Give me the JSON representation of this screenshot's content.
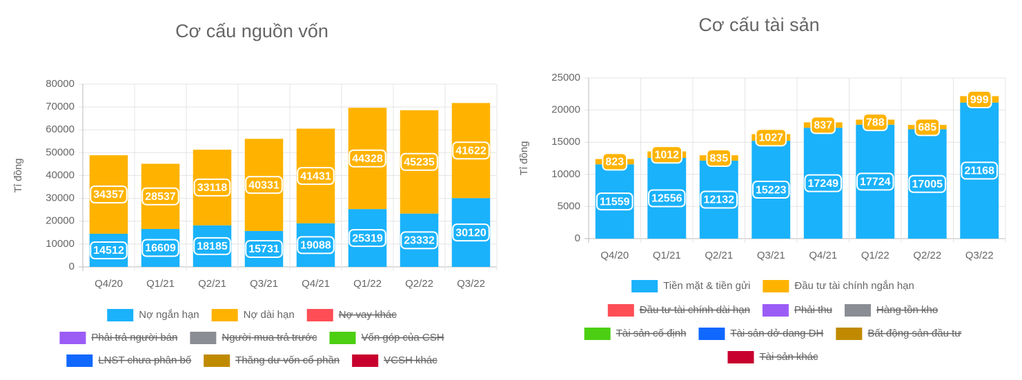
{
  "chart_data": [
    {
      "type": "bar",
      "stacked": true,
      "title": "Cơ cấu nguồn vốn",
      "y_label": "Tỉ đồng",
      "categories": [
        "Q4/20",
        "Q1/21",
        "Q2/21",
        "Q3/21",
        "Q4/21",
        "Q1/22",
        "Q2/22",
        "Q3/22"
      ],
      "series": [
        {
          "name": "Nợ ngắn hạn",
          "color": "#1ab2fb",
          "values": [
            14512,
            16609,
            18185,
            15731,
            19088,
            25319,
            23332,
            30120
          ]
        },
        {
          "name": "Nợ dài hạn",
          "color": "#ffb300",
          "values": [
            34357,
            28537,
            33118,
            40331,
            41431,
            44328,
            45235,
            41622
          ]
        }
      ],
      "legend_hidden": [
        {
          "name": "Nợ vay khác",
          "color": "#ff4d55"
        },
        {
          "name": "Phải trả người bán",
          "color": "#9b5cf6"
        },
        {
          "name": "Người mua trả trước",
          "color": "#8a8d93"
        },
        {
          "name": "Vốn góp của CSH",
          "color": "#4ccf12"
        },
        {
          "name": "LNST chưa phân bố",
          "color": "#1068ff"
        },
        {
          "name": "Thăng dư vốn cổ phần",
          "color": "#c08a00"
        },
        {
          "name": "VCSH khác",
          "color": "#c8002e"
        }
      ],
      "ylim": [
        0,
        80000
      ],
      "yticks": [
        0,
        10000,
        20000,
        30000,
        40000,
        50000,
        60000,
        70000,
        80000
      ],
      "grid": true
    },
    {
      "type": "bar",
      "stacked": true,
      "title": "Cơ cấu tài sản",
      "y_label": "Tỉ đồng",
      "categories": [
        "Q4/20",
        "Q1/21",
        "Q2/21",
        "Q3/21",
        "Q4/21",
        "Q1/22",
        "Q2/22",
        "Q3/22"
      ],
      "series": [
        {
          "name": "Tiền mặt & tiền gửi",
          "color": "#1ab2fb",
          "values": [
            11559,
            12556,
            12132,
            15223,
            17249,
            17724,
            17005,
            21168
          ]
        },
        {
          "name": "Đầu tư tài chính ngắn hạn",
          "color": "#ffb300",
          "values": [
            823,
            1012,
            835,
            1027,
            837,
            788,
            685,
            999
          ]
        }
      ],
      "legend_hidden": [
        {
          "name": "Đầu tư tài chính dài hạn",
          "color": "#ff4d55"
        },
        {
          "name": "Phải thu",
          "color": "#9b5cf6"
        },
        {
          "name": "Hàng tồn kho",
          "color": "#8a8d93"
        },
        {
          "name": "Tài sản cố định",
          "color": "#4ccf12"
        },
        {
          "name": "Tài sản dở dang DH",
          "color": "#1068ff"
        },
        {
          "name": "Bất động sản đầu tư",
          "color": "#c08a00"
        },
        {
          "name": "Tài sản khác",
          "color": "#c8002e"
        }
      ],
      "ylim": [
        0,
        25000
      ],
      "yticks": [
        0,
        5000,
        10000,
        15000,
        20000,
        25000
      ],
      "grid": true
    }
  ]
}
